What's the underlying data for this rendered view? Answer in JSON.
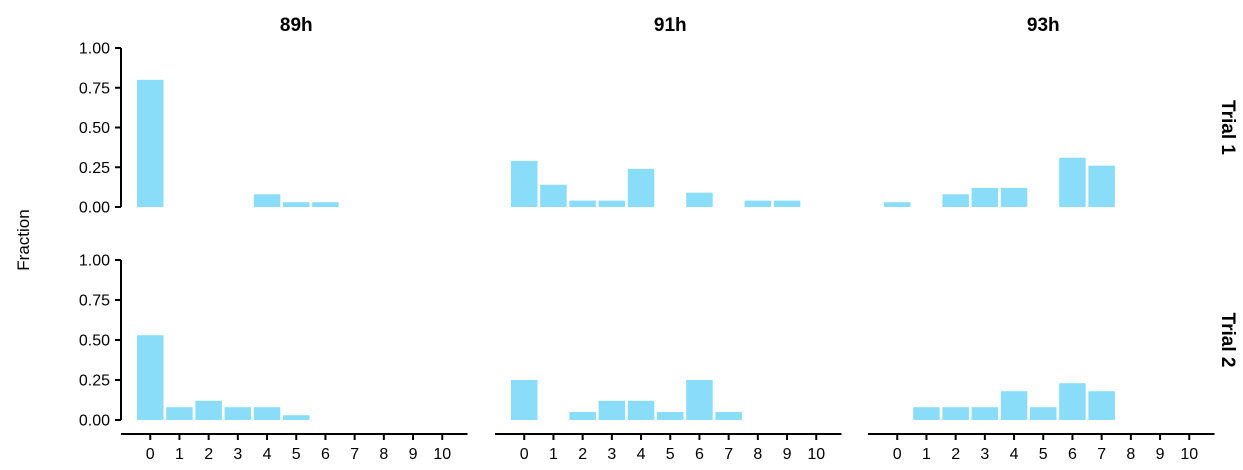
{
  "chart_data": {
    "type": "bar",
    "layout": "facet-grid",
    "ylabel": "Fraction",
    "ylim": [
      0,
      1
    ],
    "y_ticks": [
      "0.00",
      "0.25",
      "0.50",
      "0.75",
      "1.00"
    ],
    "y_tick_values": [
      0,
      0.25,
      0.5,
      0.75,
      1
    ],
    "categories": [
      "0",
      "1",
      "2",
      "3",
      "4",
      "5",
      "6",
      "7",
      "8",
      "9",
      "10"
    ],
    "columns": [
      "89h",
      "91h",
      "93h"
    ],
    "rows": [
      "Trial 1",
      "Trial 2"
    ],
    "bar_color": "#8ADDF8",
    "grid": false,
    "panels": [
      {
        "row": "Trial 1",
        "column": "89h",
        "values": [
          0.8,
          0,
          0,
          0,
          0.08,
          0.03,
          0.03,
          0,
          0,
          0,
          0
        ]
      },
      {
        "row": "Trial 1",
        "column": "91h",
        "values": [
          0.29,
          0.14,
          0.04,
          0.04,
          0.24,
          0,
          0.09,
          0,
          0.04,
          0.04,
          0
        ]
      },
      {
        "row": "Trial 1",
        "column": "93h",
        "values": [
          0.03,
          0,
          0.08,
          0.12,
          0.12,
          0,
          0.31,
          0.26,
          0,
          0,
          0
        ]
      },
      {
        "row": "Trial 2",
        "column": "89h",
        "values": [
          0.53,
          0.08,
          0.12,
          0.08,
          0.08,
          0.03,
          0,
          0,
          0,
          0,
          0
        ]
      },
      {
        "row": "Trial 2",
        "column": "91h",
        "values": [
          0.25,
          0,
          0.05,
          0.12,
          0.12,
          0.05,
          0.25,
          0.05,
          0,
          0,
          0
        ]
      },
      {
        "row": "Trial 2",
        "column": "93h",
        "values": [
          0,
          0.08,
          0.08,
          0.08,
          0.18,
          0.08,
          0.23,
          0.18,
          0,
          0,
          0
        ]
      }
    ]
  }
}
